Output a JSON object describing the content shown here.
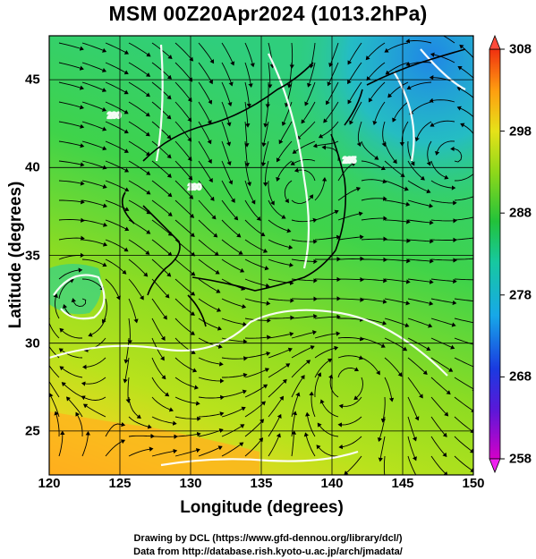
{
  "title": "MSM 00Z20Apr2024 (1013.2hPa)",
  "xlabel": "Longitude (degrees)",
  "ylabel": "Latitude  (degrees)",
  "x_ticks": [
    "120",
    "125",
    "130",
    "135",
    "140",
    "145",
    "150"
  ],
  "y_ticks": [
    "25",
    "30",
    "35",
    "40",
    "45"
  ],
  "colorbar_ticks": [
    "308",
    "298",
    "288",
    "278",
    "268",
    "258"
  ],
  "credits": {
    "line1": "Drawing by DCL (https://www.gfd-dennou.org/library/dcl/)",
    "line2": "Data from http://database.rish.kyoto-u.ac.jp/arch/jmadata/"
  },
  "contour_labels": [
    "280",
    "290",
    "285"
  ],
  "chart_data": {
    "type": "heatmap",
    "map_extent": {
      "lon": [
        120,
        150
      ],
      "lat": [
        22.5,
        47.5
      ]
    },
    "variable": "temperature (K) with streamlines",
    "colorbar_range": [
      258,
      308
    ],
    "colors": {
      "cold": "#cc00cc",
      "mid": "#22cc44",
      "warm": "#ff9900",
      "hot": "#ff3300"
    }
  }
}
